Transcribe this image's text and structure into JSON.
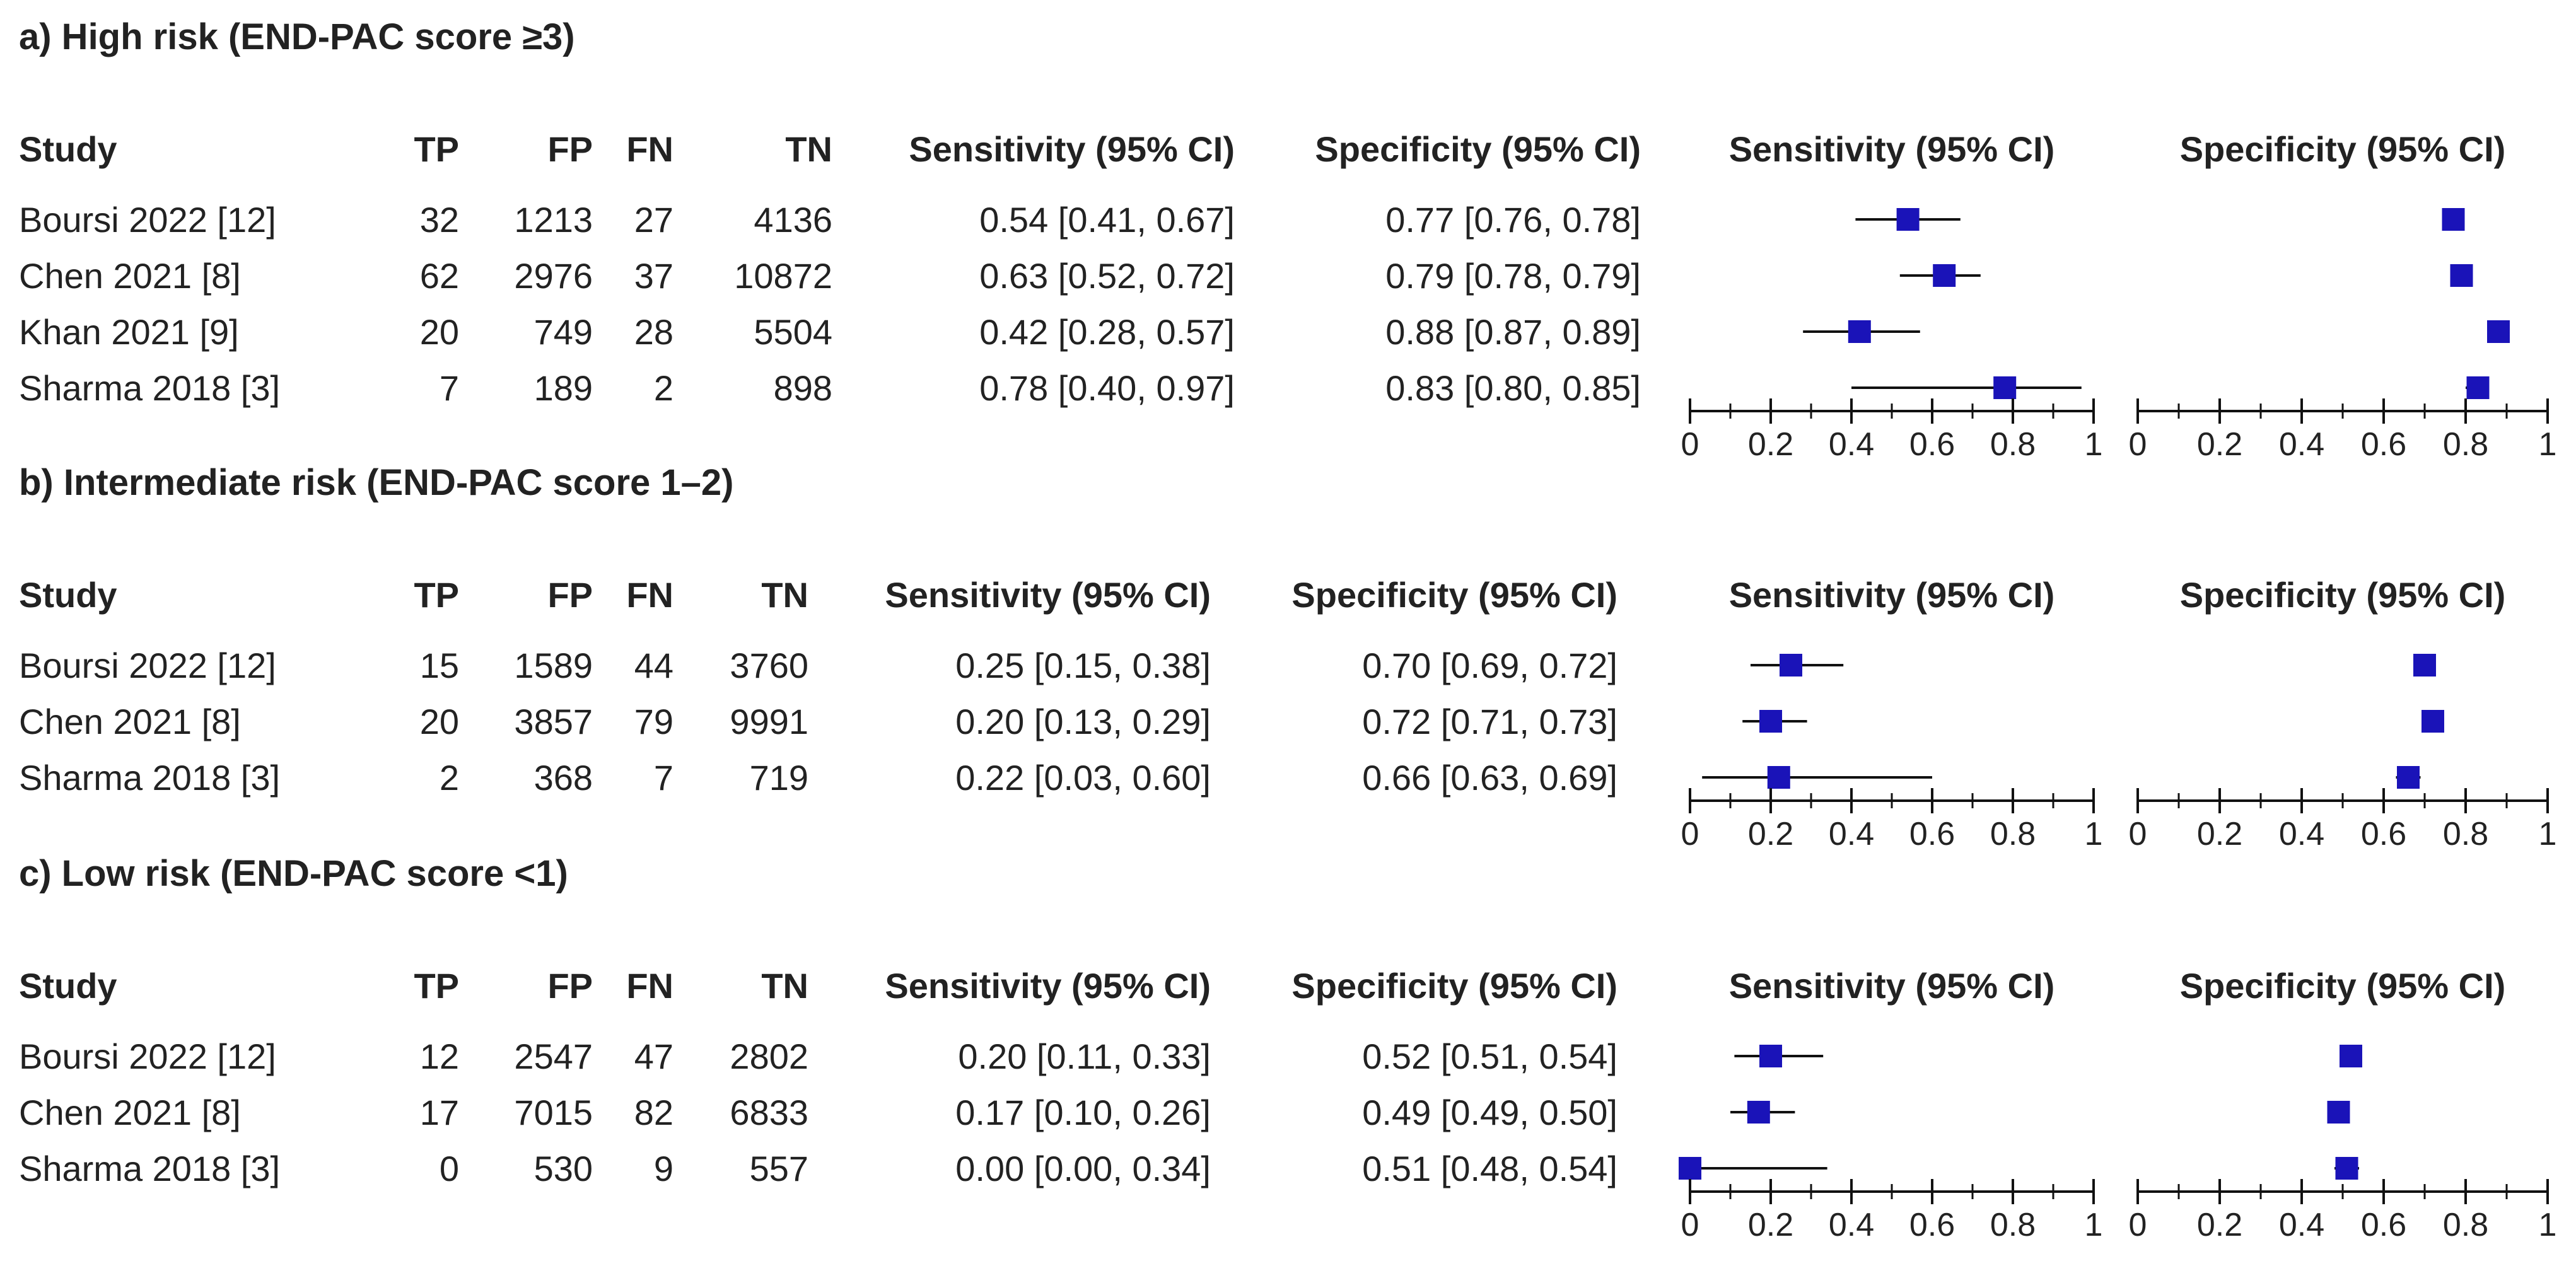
{
  "chart_data": {
    "type": "forest",
    "columns": {
      "study": "Study",
      "tp": "TP",
      "fp": "FP",
      "fn": "FN",
      "tn": "TN",
      "sens": "Sensitivity (95% CI)",
      "spec": "Specificity (95% CI)",
      "plot_sens": "Sensitivity (95% CI)",
      "plot_spec": "Specificity (95% CI)"
    },
    "axis": {
      "min": 0,
      "max": 1,
      "ticks": [
        0,
        0.2,
        0.4,
        0.6,
        0.8,
        1
      ],
      "tick_labels": [
        "0",
        "0.2",
        "0.4",
        "0.6",
        "0.8",
        "1"
      ]
    },
    "marker_color": "#1a13b8",
    "panels": [
      {
        "title": "a) High risk (END-PAC score ≥3)",
        "rows": [
          {
            "study": "Boursi 2022 [12]",
            "tp": "32",
            "fp": "1213",
            "fn": "27",
            "tn": "4136",
            "sens_text": "0.54 [0.41, 0.67]",
            "spec_text": "0.77 [0.76, 0.78]",
            "sens": 0.54,
            "sens_lo": 0.41,
            "sens_hi": 0.67,
            "spec": 0.77,
            "spec_lo": 0.76,
            "spec_hi": 0.78
          },
          {
            "study": "Chen 2021 [8]",
            "tp": "62",
            "fp": "2976",
            "fn": "37",
            "tn": "10872",
            "sens_text": "0.63 [0.52, 0.72]",
            "spec_text": "0.79 [0.78, 0.79]",
            "sens": 0.63,
            "sens_lo": 0.52,
            "sens_hi": 0.72,
            "spec": 0.79,
            "spec_lo": 0.78,
            "spec_hi": 0.79
          },
          {
            "study": "Khan 2021 [9]",
            "tp": "20",
            "fp": "749",
            "fn": "28",
            "tn": "5504",
            "sens_text": "0.42 [0.28, 0.57]",
            "spec_text": "0.88 [0.87, 0.89]",
            "sens": 0.42,
            "sens_lo": 0.28,
            "sens_hi": 0.57,
            "spec": 0.88,
            "spec_lo": 0.87,
            "spec_hi": 0.89
          },
          {
            "study": "Sharma 2018 [3]",
            "tp": "7",
            "fp": "189",
            "fn": "2",
            "tn": "898",
            "sens_text": "0.78 [0.40, 0.97]",
            "spec_text": "0.83 [0.80, 0.85]",
            "sens": 0.78,
            "sens_lo": 0.4,
            "sens_hi": 0.97,
            "spec": 0.83,
            "spec_lo": 0.8,
            "spec_hi": 0.85
          }
        ]
      },
      {
        "title": "b) Intermediate risk (END-PAC score 1–2)",
        "rows": [
          {
            "study": "Boursi 2022 [12]",
            "tp": "15",
            "fp": "1589",
            "fn": "44",
            "tn": "3760",
            "sens_text": "0.25 [0.15, 0.38]",
            "spec_text": "0.70 [0.69, 0.72]",
            "sens": 0.25,
            "sens_lo": 0.15,
            "sens_hi": 0.38,
            "spec": 0.7,
            "spec_lo": 0.69,
            "spec_hi": 0.72
          },
          {
            "study": "Chen 2021 [8]",
            "tp": "20",
            "fp": "3857",
            "fn": "79",
            "tn": "9991",
            "sens_text": "0.20 [0.13, 0.29]",
            "spec_text": "0.72 [0.71, 0.73]",
            "sens": 0.2,
            "sens_lo": 0.13,
            "sens_hi": 0.29,
            "spec": 0.72,
            "spec_lo": 0.71,
            "spec_hi": 0.73
          },
          {
            "study": "Sharma 2018 [3]",
            "tp": "2",
            "fp": "368",
            "fn": "7",
            "tn": "719",
            "sens_text": "0.22 [0.03, 0.60]",
            "spec_text": "0.66 [0.63, 0.69]",
            "sens": 0.22,
            "sens_lo": 0.03,
            "sens_hi": 0.6,
            "spec": 0.66,
            "spec_lo": 0.63,
            "spec_hi": 0.69
          }
        ]
      },
      {
        "title": "c) Low risk (END-PAC score <1)",
        "rows": [
          {
            "study": "Boursi 2022 [12]",
            "tp": "12",
            "fp": "2547",
            "fn": "47",
            "tn": "2802",
            "sens_text": "0.20 [0.11, 0.33]",
            "spec_text": "0.52 [0.51, 0.54]",
            "sens": 0.2,
            "sens_lo": 0.11,
            "sens_hi": 0.33,
            "spec": 0.52,
            "spec_lo": 0.51,
            "spec_hi": 0.54
          },
          {
            "study": "Chen 2021 [8]",
            "tp": "17",
            "fp": "7015",
            "fn": "82",
            "tn": "6833",
            "sens_text": "0.17 [0.10, 0.26]",
            "spec_text": "0.49 [0.49, 0.50]",
            "sens": 0.17,
            "sens_lo": 0.1,
            "sens_hi": 0.26,
            "spec": 0.49,
            "spec_lo": 0.49,
            "spec_hi": 0.5
          },
          {
            "study": "Sharma 2018 [3]",
            "tp": "0",
            "fp": "530",
            "fn": "9",
            "tn": "557",
            "sens_text": "0.00 [0.00, 0.34]",
            "spec_text": "0.51 [0.48, 0.54]",
            "sens": 0.0,
            "sens_lo": 0.0,
            "sens_hi": 0.34,
            "spec": 0.51,
            "spec_lo": 0.48,
            "spec_hi": 0.54
          }
        ]
      }
    ]
  }
}
